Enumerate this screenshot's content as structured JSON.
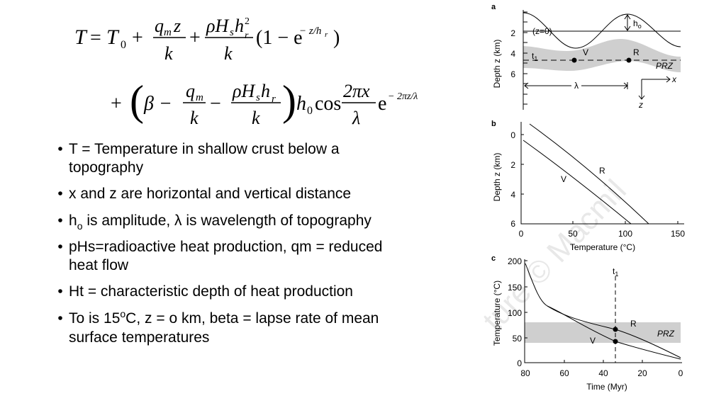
{
  "equation": {
    "tokens": [
      "T",
      "=",
      "T",
      "0",
      "+",
      "q",
      "m",
      "z",
      "k",
      "+",
      "ρH",
      "s",
      "h",
      "2",
      "r",
      "k",
      "(1 − e",
      "− z/h",
      "r",
      ")",
      "+",
      "(",
      "β −",
      "q",
      "m",
      "k",
      "−",
      "ρH",
      "s",
      "h",
      "r",
      "k",
      ")",
      "h",
      "0",
      "cos",
      "2πx",
      "λ",
      "e",
      "− 2πz/λ"
    ]
  },
  "bullets": [
    [
      "T = Temperature in shallow crust below a",
      "topography"
    ],
    [
      "x and z are horizontal and vertical distance"
    ],
    [
      "h",
      "o",
      " is amplitude, λ is wavelength of topography"
    ],
    [
      "pHs=radioactive heat production, qm = reduced",
      "heat flow"
    ],
    [
      "Ht = characteristic depth of heat production"
    ],
    [
      "To is 15",
      "o",
      "C, z = o km, beta = lapse rate of mean",
      "surface temperatures"
    ]
  ],
  "figure": {
    "watermark": "ture © Macmil",
    "a": {
      "label": "a",
      "y_label": "Depth z (km)",
      "yticks": [
        "2",
        "4",
        "6"
      ],
      "surface": "(z=0)",
      "h": "h",
      "h_sub": "o",
      "t": "t",
      "t_sub": "1",
      "v": "V",
      "r": "R",
      "prz": "PRZ",
      "lambda": "λ",
      "x": "x",
      "z": "z"
    },
    "b": {
      "label": "b",
      "y_label": "Depth z (km)",
      "yticks": [
        "0",
        "2",
        "4",
        "6"
      ],
      "xticks": [
        "0",
        "50",
        "100",
        "150"
      ],
      "x_label": "Temperature (°C)",
      "r": "R",
      "v": "V"
    },
    "c": {
      "label": "c",
      "y_label": "Temperature (°C)",
      "yticks": [
        "200",
        "150",
        "100",
        "50",
        "0"
      ],
      "xticks": [
        "80",
        "60",
        "40",
        "20",
        "0"
      ],
      "x_label": "Time (Myr)",
      "t": "t",
      "t_sub": "1",
      "r": "R",
      "v": "V",
      "prz": "PRZ"
    }
  }
}
